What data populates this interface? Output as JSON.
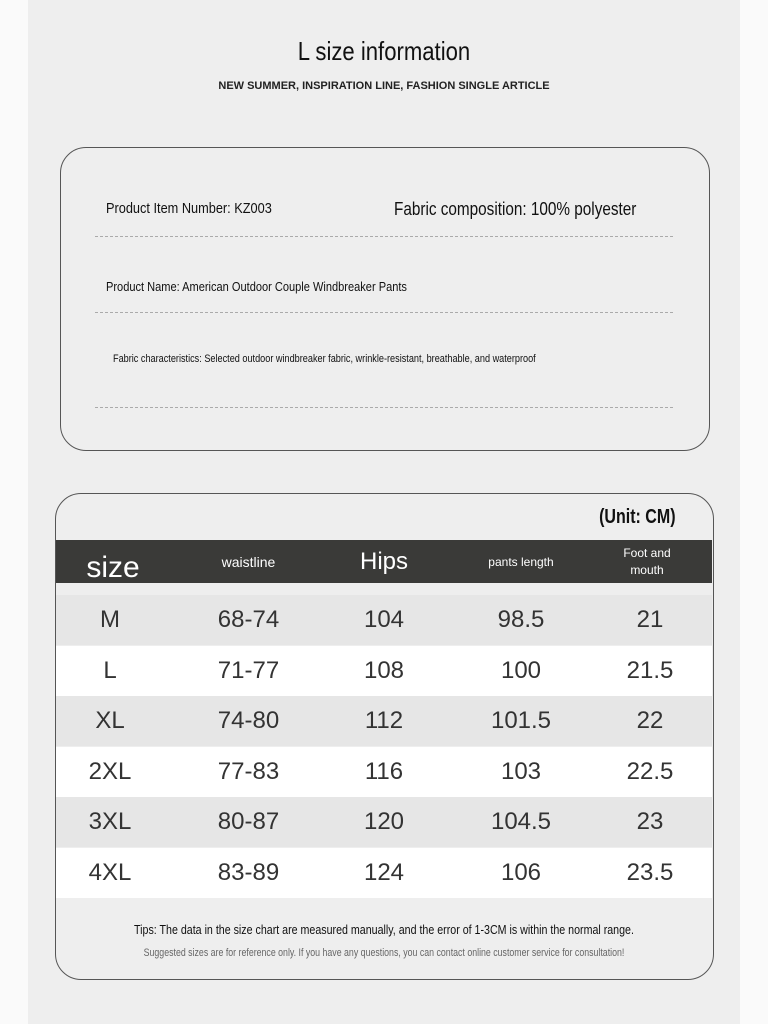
{
  "header": {
    "title": "L size information",
    "subtitle": "NEW SUMMER, INSPIRATION LINE, FASHION SINGLE ARTICLE"
  },
  "info": {
    "item_number": "Product Item Number: KZ003",
    "fabric_composition": "Fabric composition: 100% polyester",
    "product_name": "Product Name: American Outdoor Couple Windbreaker Pants",
    "fabric_characteristics": "Fabric characteristics: Selected outdoor windbreaker fabric, wrinkle-resistant, breathable, and waterproof"
  },
  "table": {
    "unit": "(Unit: CM)",
    "headers": [
      "size",
      "waistline",
      "Hips",
      "pants length",
      "Foot and mouth"
    ],
    "rows": [
      [
        "M",
        "68-74",
        "104",
        "98.5",
        "21"
      ],
      [
        "L",
        "71-77",
        "108",
        "100",
        "21.5"
      ],
      [
        "XL",
        "74-80",
        "112",
        "101.5",
        "22"
      ],
      [
        "2XL",
        "77-83",
        "116",
        "103",
        "22.5"
      ],
      [
        "3XL",
        "80-87",
        "120",
        "104.5",
        "23"
      ],
      [
        "4XL",
        "83-89",
        "124",
        "106",
        "23.5"
      ]
    ]
  },
  "tips": {
    "main": "Tips: The data in the size chart are measured manually, and the error of 1-3CM is within the normal range.",
    "note": "Suggested sizes are for reference only. If you have any questions, you can contact online customer service for consultation!"
  },
  "colors": {
    "header_bg": "#3a3a38",
    "row_alt": "#e6e6e6",
    "page_bg": "#eeeeee"
  }
}
